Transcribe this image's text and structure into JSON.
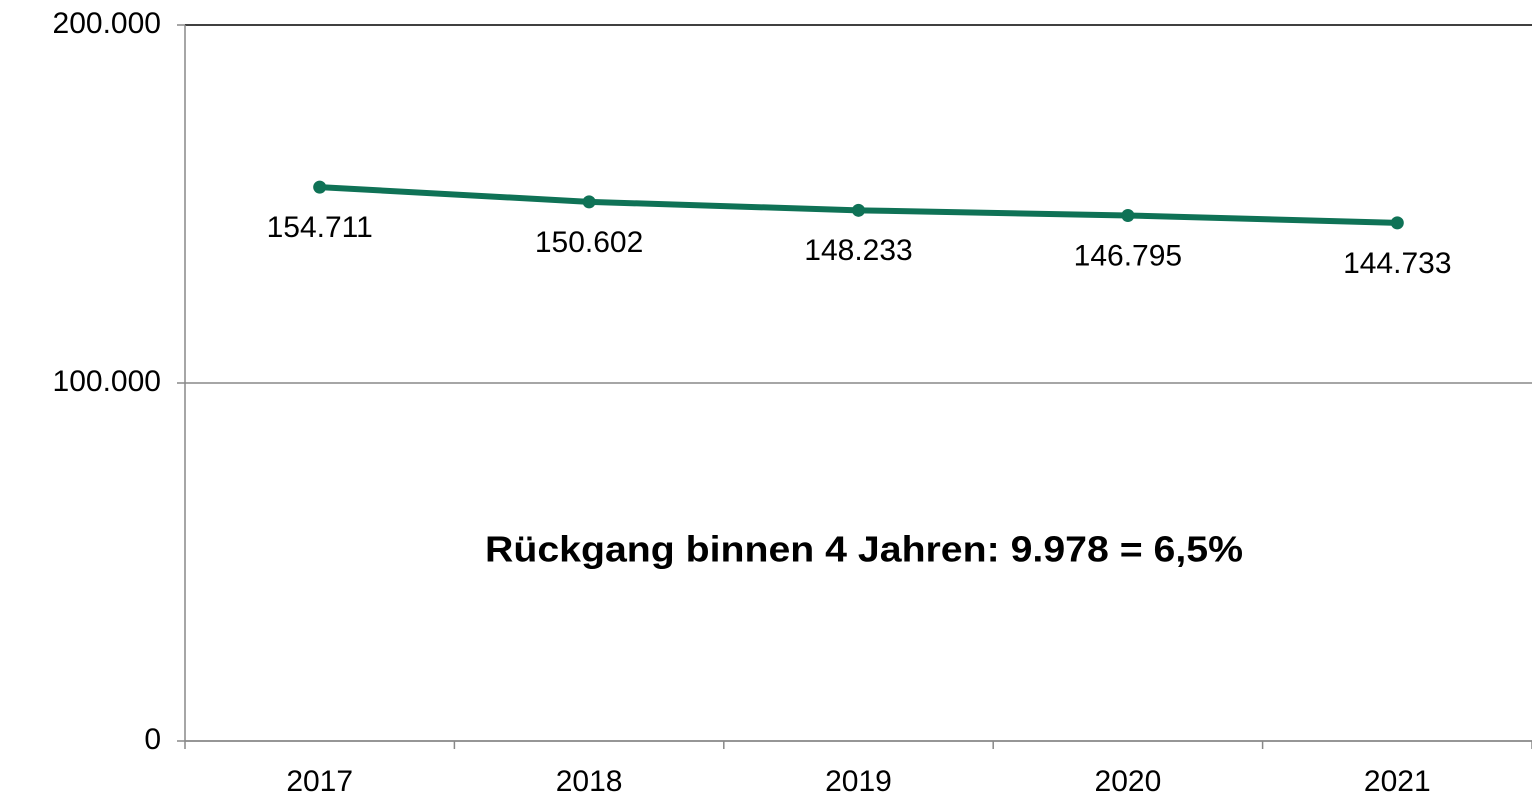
{
  "chart_data": {
    "type": "line",
    "categories": [
      "2017",
      "2018",
      "2019",
      "2020",
      "2021"
    ],
    "series": [
      {
        "name": null,
        "color": "#0f7256",
        "values": [
          154711,
          150602,
          148233,
          146795,
          144733
        ],
        "value_labels": [
          "154.711",
          "150.602",
          "148.233",
          "146.795",
          "144.733"
        ]
      }
    ],
    "ylim": [
      0,
      200000
    ],
    "yticks": [
      0,
      {
        "value": 100000,
        "label": "100.000"
      },
      {
        "value": 200000,
        "label": "200.000"
      }
    ],
    "grid": true,
    "annotation": "Rückgang binnen 4 Jahren: 9.978 = 6,5%",
    "annotation_color": "#ff0000"
  }
}
